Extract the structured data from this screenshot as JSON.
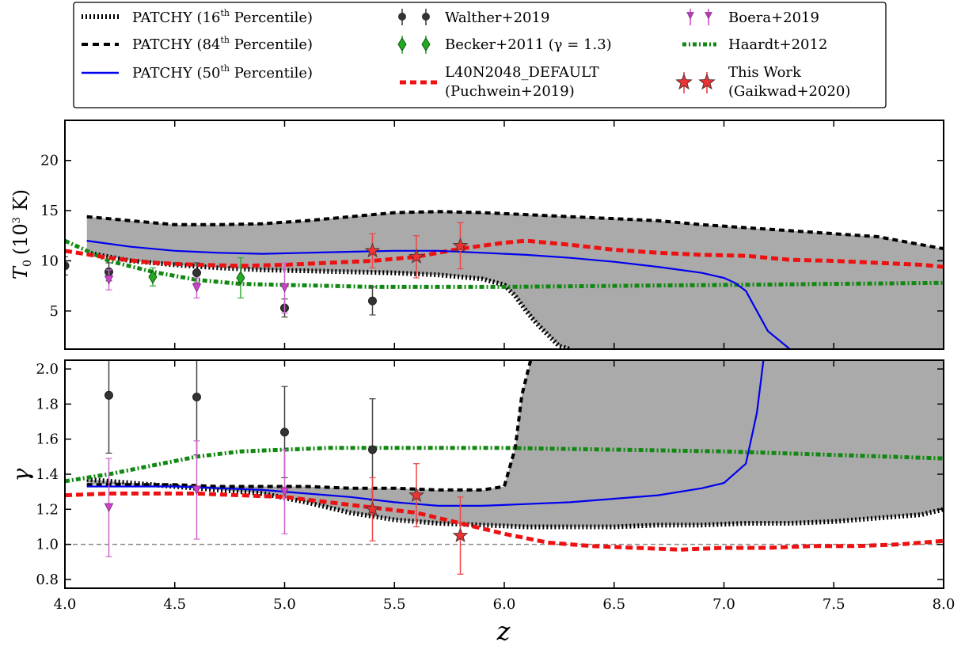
{
  "figure": {
    "xlabel": "z",
    "top_ylabel": "T",
    "top_ylabel_sub": "0",
    "top_ylabel_unit": "(10",
    "top_ylabel_unit_sup": "3",
    "top_ylabel_unit_end": " K)",
    "bottom_ylabel": "γ"
  },
  "legend": {
    "p16": {
      "label": "PATCHY (16",
      "sup": "th",
      "end": " Percentile)"
    },
    "p84": {
      "label": "PATCHY (84",
      "sup": "th",
      "end": " Percentile)"
    },
    "p50": {
      "label": "PATCHY (50",
      "sup": "th",
      "end": " Percentile)"
    },
    "walther": "Walther+2019",
    "becker": "Becker+2011 (γ = 1.3)",
    "l40_1": "L40N2048_DEFAULT",
    "l40_2": "(Puchwein+2019)",
    "boera": "Boera+2019",
    "haardt": "Haardt+2012",
    "thiswork_1": "This Work",
    "thiswork_2": "(Gaikwad+2020)"
  },
  "colors": {
    "band": "#aaaaaa",
    "patchy_median": "#0000ee",
    "puchwein": "#ee1111",
    "haardt": "#118811",
    "walther": "#333333",
    "becker": "#22aa22",
    "boera": "#cc44cc",
    "thiswork": "#ee3333",
    "reference_line": "#888888"
  },
  "chart_data": [
    {
      "type": "line",
      "panel": "top",
      "ylabel": "T0 (10^3 K)",
      "xlim": [
        4.0,
        8.0
      ],
      "ylim": [
        1.2,
        24
      ],
      "xticks": [
        4.0,
        4.5,
        5.0,
        5.5,
        6.0,
        6.5,
        7.0,
        7.5,
        8.0
      ],
      "yticks": [
        5,
        10,
        15,
        20
      ],
      "series": [
        {
          "name": "PATCHY (16th Percentile)",
          "style": "band_lower",
          "x": [
            4.1,
            4.3,
            4.5,
            4.7,
            4.9,
            5.1,
            5.3,
            5.5,
            5.7,
            5.9,
            6.0,
            6.05,
            6.1,
            6.15,
            6.2,
            6.25,
            6.3
          ],
          "y": [
            10.8,
            10.0,
            9.6,
            9.3,
            9.1,
            9.0,
            8.9,
            8.8,
            8.6,
            8.2,
            7.6,
            6.5,
            5.0,
            3.7,
            2.6,
            1.5,
            1.2
          ]
        },
        {
          "name": "PATCHY (84th Percentile)",
          "style": "band_upper",
          "x": [
            4.1,
            4.3,
            4.5,
            4.7,
            4.9,
            5.1,
            5.3,
            5.5,
            5.7,
            5.9,
            6.1,
            6.3,
            6.5,
            6.7,
            6.9,
            7.1,
            7.3,
            7.5,
            7.7,
            7.9,
            8.0
          ],
          "y": [
            14.4,
            14.0,
            13.6,
            13.6,
            13.7,
            14.0,
            14.4,
            14.8,
            14.9,
            14.8,
            14.6,
            14.4,
            14.2,
            14.0,
            13.6,
            13.3,
            13.0,
            12.7,
            12.4,
            11.6,
            11.2
          ]
        },
        {
          "name": "PATCHY (50th Percentile)",
          "style": "median",
          "x": [
            4.1,
            4.3,
            4.5,
            4.7,
            4.9,
            5.1,
            5.3,
            5.5,
            5.7,
            5.9,
            6.1,
            6.3,
            6.5,
            6.7,
            6.9,
            7.0,
            7.05,
            7.1,
            7.2,
            7.3
          ],
          "y": [
            12.0,
            11.4,
            11.0,
            10.8,
            10.7,
            10.8,
            10.9,
            11.0,
            11.0,
            10.8,
            10.6,
            10.3,
            9.9,
            9.4,
            8.8,
            8.3,
            7.8,
            7.0,
            3.0,
            1.2
          ]
        },
        {
          "name": "L40N2048_DEFAULT (Puchwein+2019)",
          "style": "puchwein",
          "x": [
            4.0,
            4.2,
            4.4,
            4.6,
            4.8,
            5.0,
            5.2,
            5.4,
            5.6,
            5.8,
            6.0,
            6.1,
            6.3,
            6.5,
            6.7,
            6.9,
            7.1,
            7.3,
            7.5,
            7.7,
            7.9,
            8.0
          ],
          "y": [
            11.0,
            10.3,
            9.8,
            9.6,
            9.5,
            9.6,
            9.8,
            10.0,
            10.4,
            11.2,
            11.8,
            12.0,
            11.6,
            11.1,
            10.8,
            10.6,
            10.5,
            10.1,
            10.0,
            9.8,
            9.6,
            9.4
          ]
        },
        {
          "name": "Haardt+2012",
          "style": "haardt",
          "x": [
            4.0,
            4.2,
            4.4,
            4.6,
            4.8,
            5.0,
            5.2,
            5.4,
            5.6,
            5.8,
            6.0,
            6.5,
            7.0,
            7.5,
            8.0
          ],
          "y": [
            12.0,
            10.0,
            8.9,
            8.1,
            7.7,
            7.6,
            7.5,
            7.4,
            7.4,
            7.4,
            7.4,
            7.5,
            7.6,
            7.7,
            7.8
          ]
        }
      ],
      "points": [
        {
          "name": "Walther+2019",
          "marker": "circle",
          "x": [
            4.0,
            4.2,
            4.6,
            5.0,
            5.4
          ],
          "y": [
            9.5,
            8.9,
            8.8,
            5.3,
            6.0
          ],
          "yerr": [
            0.9,
            0.9,
            1.0,
            0.9,
            1.4
          ]
        },
        {
          "name": "Becker+2011 (γ = 1.3)",
          "marker": "diamond",
          "x": [
            4.4,
            4.8
          ],
          "y": [
            8.4,
            8.3
          ],
          "yerr": [
            0.9,
            2.0
          ]
        },
        {
          "name": "Boera+2019",
          "marker": "triangle",
          "x": [
            4.2,
            4.6,
            5.0
          ],
          "y": [
            8.1,
            7.3,
            7.3
          ],
          "yerr": [
            1.0,
            1.0,
            2.5
          ]
        },
        {
          "name": "This Work (Gaikwad+2020)",
          "marker": "star",
          "x": [
            5.4,
            5.6,
            5.8
          ],
          "y": [
            11.0,
            10.4,
            11.5
          ],
          "yerr": [
            1.7,
            2.1,
            2.3
          ]
        }
      ]
    },
    {
      "type": "line",
      "panel": "bottom",
      "ylabel": "γ",
      "xlabel": "z",
      "xlim": [
        4.0,
        8.0
      ],
      "ylim": [
        0.75,
        2.05
      ],
      "xticks": [
        4.0,
        4.5,
        5.0,
        5.5,
        6.0,
        6.5,
        7.0,
        7.5,
        8.0
      ],
      "yticks": [
        0.8,
        1.0,
        1.2,
        1.4,
        1.6,
        1.8,
        2.0
      ],
      "series": [
        {
          "name": "PATCHY (16th Percentile)",
          "style": "band_upper",
          "x": [
            4.1,
            4.3,
            4.5,
            4.7,
            4.9,
            5.1,
            5.3,
            5.5,
            5.7,
            5.9,
            6.0,
            6.05,
            6.08,
            6.12
          ],
          "y": [
            1.34,
            1.34,
            1.34,
            1.33,
            1.33,
            1.33,
            1.32,
            1.32,
            1.31,
            1.31,
            1.33,
            1.55,
            1.85,
            2.05
          ]
        },
        {
          "name": "PATCHY (84th Percentile)",
          "style": "band_lower",
          "x": [
            4.1,
            4.3,
            4.5,
            4.7,
            4.9,
            5.1,
            5.3,
            5.5,
            5.7,
            5.9,
            6.1,
            6.3,
            6.5,
            6.7,
            6.9,
            7.1,
            7.3,
            7.5,
            7.7,
            7.9,
            8.0
          ],
          "y": [
            1.37,
            1.35,
            1.33,
            1.31,
            1.29,
            1.24,
            1.18,
            1.14,
            1.12,
            1.11,
            1.1,
            1.1,
            1.1,
            1.11,
            1.11,
            1.12,
            1.12,
            1.13,
            1.15,
            1.17,
            1.2
          ]
        },
        {
          "name": "PATCHY (50th Percentile)",
          "style": "median",
          "x": [
            4.1,
            4.3,
            4.5,
            4.7,
            4.9,
            5.1,
            5.3,
            5.5,
            5.7,
            5.9,
            6.1,
            6.3,
            6.5,
            6.7,
            6.9,
            7.0,
            7.1,
            7.15,
            7.18
          ],
          "y": [
            1.33,
            1.33,
            1.33,
            1.32,
            1.31,
            1.29,
            1.27,
            1.24,
            1.22,
            1.22,
            1.23,
            1.24,
            1.26,
            1.28,
            1.32,
            1.35,
            1.46,
            1.75,
            2.05
          ]
        },
        {
          "name": "L40N2048_DEFAULT (Puchwein+2019)",
          "style": "puchwein",
          "x": [
            4.0,
            4.2,
            4.4,
            4.6,
            4.8,
            5.0,
            5.2,
            5.4,
            5.6,
            5.8,
            6.0,
            6.2,
            6.4,
            6.6,
            6.8,
            7.0,
            7.2,
            7.4,
            7.6,
            7.8,
            8.0
          ],
          "y": [
            1.28,
            1.29,
            1.29,
            1.29,
            1.28,
            1.27,
            1.24,
            1.21,
            1.18,
            1.12,
            1.06,
            1.01,
            0.99,
            0.98,
            0.97,
            0.98,
            0.98,
            0.99,
            0.99,
            1.0,
            1.02
          ]
        },
        {
          "name": "Haardt+2012",
          "style": "haardt",
          "x": [
            4.0,
            4.2,
            4.4,
            4.6,
            4.8,
            5.0,
            5.2,
            5.4,
            5.6,
            5.8,
            6.0,
            6.5,
            7.0,
            7.5,
            8.0
          ],
          "y": [
            1.36,
            1.4,
            1.45,
            1.5,
            1.53,
            1.54,
            1.55,
            1.55,
            1.55,
            1.55,
            1.55,
            1.54,
            1.53,
            1.51,
            1.49
          ]
        },
        {
          "name": "",
          "style": "reference",
          "x": [
            4.0,
            8.0
          ],
          "y": [
            1.0,
            1.0
          ]
        }
      ],
      "points": [
        {
          "name": "Walther+2019",
          "marker": "circle",
          "x": [
            4.2,
            4.6,
            5.0,
            5.4
          ],
          "y": [
            1.85,
            1.84,
            1.64,
            1.54
          ],
          "yerr": [
            0.33,
            0.33,
            0.26,
            0.29
          ]
        },
        {
          "name": "Boera+2019",
          "marker": "triangle",
          "x": [
            4.2,
            4.6,
            5.0
          ],
          "y": [
            1.21,
            1.31,
            1.3
          ],
          "yerr": [
            0.28,
            0.28,
            0.24
          ]
        },
        {
          "name": "This Work (Gaikwad+2020)",
          "marker": "star",
          "x": [
            5.4,
            5.6,
            5.8
          ],
          "y": [
            1.2,
            1.28,
            1.05
          ],
          "yerr": [
            0.18,
            0.18,
            0.22
          ]
        }
      ]
    }
  ]
}
